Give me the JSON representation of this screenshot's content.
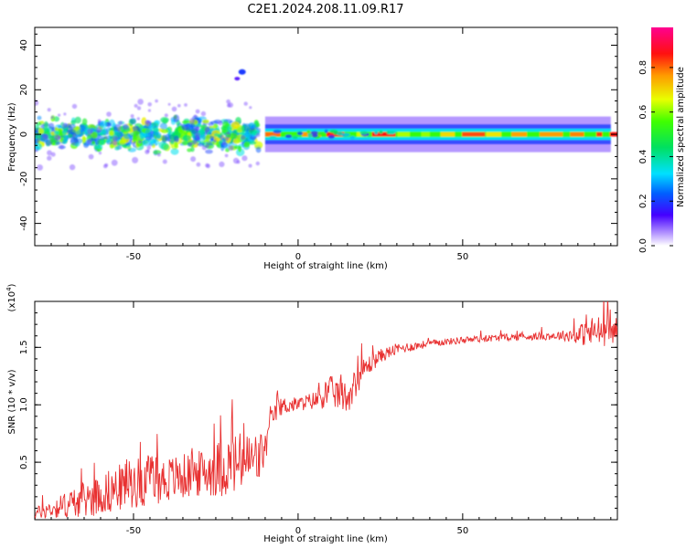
{
  "title": "C2E1.2024.208.11.09.R17",
  "chart_data": [
    {
      "type": "heatmap",
      "xlabel": "Height of straight line (km)",
      "ylabel": "Frequency (Hz)",
      "xlim": [
        -80,
        97
      ],
      "ylim": [
        -50,
        48
      ],
      "xticks": [
        -50,
        0,
        50
      ],
      "yticks": [
        -40,
        -20,
        0,
        20,
        40
      ],
      "colorbar": {
        "label": "Normalized spectral amplitude",
        "range": [
          0,
          0.98
        ],
        "ticks": [
          "0.0",
          "0.2",
          "0.4",
          "0.6",
          "0.8"
        ],
        "colormap": "rainbow"
      },
      "features": [
        {
          "name": "scattered-noise",
          "x": [
            -80,
            -12
          ],
          "y_center": 0,
          "y_spread": 4,
          "intensity": [
            0.2,
            0.7
          ]
        },
        {
          "name": "carrier-line",
          "x": [
            -10,
            95
          ],
          "y_center": 0,
          "y_width": 2.5,
          "intensity": [
            0.55,
            0.95
          ]
        },
        {
          "name": "isolated-signal",
          "x": -17,
          "y": 28,
          "intensity": 0.2
        }
      ]
    },
    {
      "type": "line",
      "xlabel": "Height of straight line (km)",
      "ylabel": "SNR (10 * v/v)",
      "y_multiplier": "(x10^4)",
      "xlim": [
        -80,
        97
      ],
      "ylim": [
        0,
        1.9
      ],
      "xticks": [
        -50,
        0,
        50
      ],
      "yticks": [
        "0.5",
        "1.0",
        "1.5"
      ],
      "series": [
        {
          "color": "#e83030",
          "x": [
            -80,
            -70,
            -60,
            -50,
            -40,
            -30,
            -20,
            -12,
            -10,
            -8,
            -5,
            0,
            5,
            10,
            15,
            20,
            25,
            30,
            40,
            50,
            60,
            70,
            80,
            85,
            90,
            95,
            97
          ],
          "mean": [
            0.05,
            0.12,
            0.2,
            0.3,
            0.33,
            0.38,
            0.45,
            0.5,
            0.6,
            0.88,
            0.98,
            1.0,
            1.03,
            1.1,
            1.05,
            1.3,
            1.42,
            1.48,
            1.53,
            1.56,
            1.58,
            1.59,
            1.6,
            1.6,
            1.62,
            1.63,
            1.65
          ],
          "noise": [
            0.05,
            0.12,
            0.18,
            0.22,
            0.2,
            0.2,
            0.28,
            0.25,
            0.15,
            0.08,
            0.08,
            0.06,
            0.08,
            0.14,
            0.14,
            0.1,
            0.06,
            0.05,
            0.03,
            0.03,
            0.03,
            0.03,
            0.04,
            0.08,
            0.15,
            0.12,
            0.1
          ]
        }
      ]
    }
  ]
}
